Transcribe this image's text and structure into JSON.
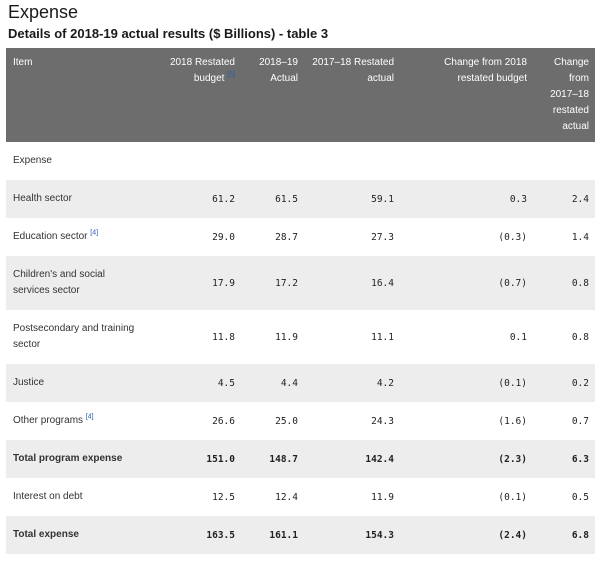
{
  "page_title": "Expense",
  "table_title": "Details of 2018-19 actual results ($ Billions) - table 3",
  "columns": [
    {
      "label": "Item"
    },
    {
      "label": "2018 Restated budget",
      "note": "[5]"
    },
    {
      "label": "2018–19 Actual"
    },
    {
      "label": "2017–18 Restated actual"
    },
    {
      "label": "Change from 2018 restated budget"
    },
    {
      "label": "Change from 2017–18 restated actual"
    }
  ],
  "section_label": "Expense",
  "rows": [
    {
      "item": "Health sector",
      "note": "",
      "budget": "61.2",
      "actual": "61.5",
      "prior": "59.1",
      "chg_budget": "0.3",
      "chg_prior": "2.4"
    },
    {
      "item": "Education sector",
      "note": "[4]",
      "budget": "29.0",
      "actual": "28.7",
      "prior": "27.3",
      "chg_budget": "(0.3)",
      "chg_prior": "1.4"
    },
    {
      "item": "Children's and social services sector",
      "note": "",
      "budget": "17.9",
      "actual": "17.2",
      "prior": "16.4",
      "chg_budget": "(0.7)",
      "chg_prior": "0.8"
    },
    {
      "item": "Postsecondary and training sector",
      "note": "",
      "budget": "11.8",
      "actual": "11.9",
      "prior": "11.1",
      "chg_budget": "0.1",
      "chg_prior": "0.8"
    },
    {
      "item": "Justice",
      "note": "",
      "budget": "4.5",
      "actual": "4.4",
      "prior": "4.2",
      "chg_budget": "(0.1)",
      "chg_prior": "0.2"
    },
    {
      "item": "Other programs",
      "note": "[4]",
      "budget": "26.6",
      "actual": "25.0",
      "prior": "24.3",
      "chg_budget": "(1.6)",
      "chg_prior": "0.7"
    },
    {
      "item": "Total program expense",
      "note": "",
      "budget": "151.0",
      "actual": "148.7",
      "prior": "142.4",
      "chg_budget": "(2.3)",
      "chg_prior": "6.3"
    },
    {
      "item": "Interest on debt",
      "note": "",
      "budget": "12.5",
      "actual": "12.4",
      "prior": "11.9",
      "chg_budget": "(0.1)",
      "chg_prior": "0.5"
    },
    {
      "item": "Total expense",
      "note": "",
      "budget": "163.5",
      "actual": "161.1",
      "prior": "154.3",
      "chg_budget": "(2.4)",
      "chg_prior": "6.8"
    }
  ]
}
